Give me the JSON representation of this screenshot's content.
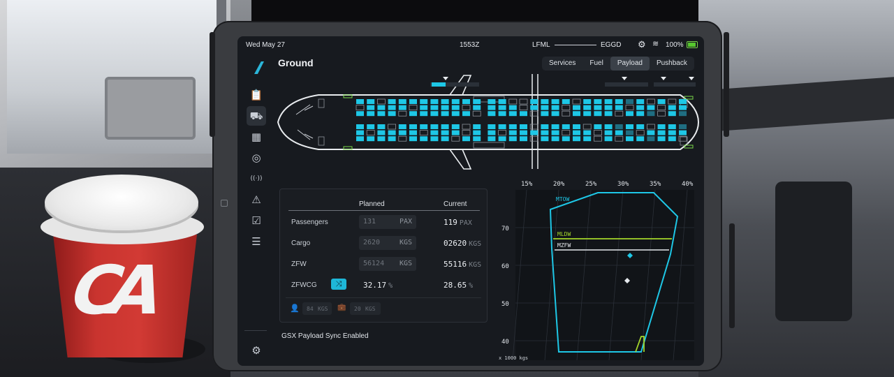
{
  "status_bar": {
    "date": "Wed May 27",
    "utc_time": "1553Z",
    "origin": "LFML",
    "destination": "EGGD",
    "battery": "100%",
    "icons": [
      "gear-icon",
      "signal-icon",
      "battery-icon"
    ]
  },
  "nav": {
    "items": [
      {
        "name": "clipboard-icon",
        "glyph": "📋",
        "active": false
      },
      {
        "name": "truck-icon",
        "glyph": "⛟",
        "active": true
      },
      {
        "name": "calculator-icon",
        "glyph": "▦",
        "active": false
      },
      {
        "name": "compass-icon",
        "glyph": "◎",
        "active": false
      },
      {
        "name": "radio-icon",
        "glyph": "((·))",
        "active": false
      },
      {
        "name": "warning-icon",
        "glyph": "⚠",
        "active": false
      },
      {
        "name": "checklist-icon",
        "glyph": "☑",
        "active": false
      },
      {
        "name": "sliders-icon",
        "glyph": "☰",
        "active": false
      }
    ],
    "settings_icon": "⚙"
  },
  "page_title": "Ground",
  "tabs": [
    "Services",
    "Fuel",
    "Payload",
    "Pushback"
  ],
  "active_tab": "Payload",
  "seat_map": {
    "upper_block": [
      "FFEFFFFFFFFFFFEEFFFFEFFFFDFEFEF",
      "EFFFFEFFFFEFFFFEFFFEFFFFFEFFEFF",
      "FFFFEFFFFFFEFFFFEFFEFFFFEFFDEFD"
    ],
    "lower_block": [
      "FFFEFFFFFFEFFFFFEFFFFEFFDFFEFFD",
      "FEFFFFEFFFEFFEFFFFFEFFEFFDEFFFF",
      "FFFFEFFFFEFFFFFFEFFFFFEFEFFDFFE"
    ]
  },
  "payload_table": {
    "headers": {
      "planned": "Planned",
      "current": "Current"
    },
    "rows": [
      {
        "label": "Passengers",
        "planned": "131",
        "unit": "PAX",
        "current": "119",
        "current_unit": "PAX"
      },
      {
        "label": "Cargo",
        "planned": "2620",
        "unit": "KGS",
        "current": "02620",
        "current_unit": "KGS"
      },
      {
        "label": "ZFW",
        "planned": "56124",
        "unit": "KGS",
        "current": "55116",
        "current_unit": "KGS"
      }
    ],
    "zfwcg": {
      "label": "ZFWCG",
      "planned": "32.17",
      "current": "28.65",
      "unit": "%"
    },
    "pax_weight": {
      "value": "84",
      "unit": "KGS"
    },
    "bag_weight": {
      "value": "20",
      "unit": "KGS"
    }
  },
  "gsx_status": "GSX Payload Sync Enabled",
  "cg_chart": {
    "x_ticks": [
      "15%",
      "20%",
      "25%",
      "30%",
      "35%",
      "40%"
    ],
    "y_ticks": [
      "70",
      "60",
      "50",
      "40"
    ],
    "limit_labels": [
      "MTOW",
      "MLDW",
      "MZFW"
    ],
    "unit_note": "x 1000 kgs",
    "accent_color": "#1ec7e6",
    "mldw_color": "#a4d62b"
  }
}
